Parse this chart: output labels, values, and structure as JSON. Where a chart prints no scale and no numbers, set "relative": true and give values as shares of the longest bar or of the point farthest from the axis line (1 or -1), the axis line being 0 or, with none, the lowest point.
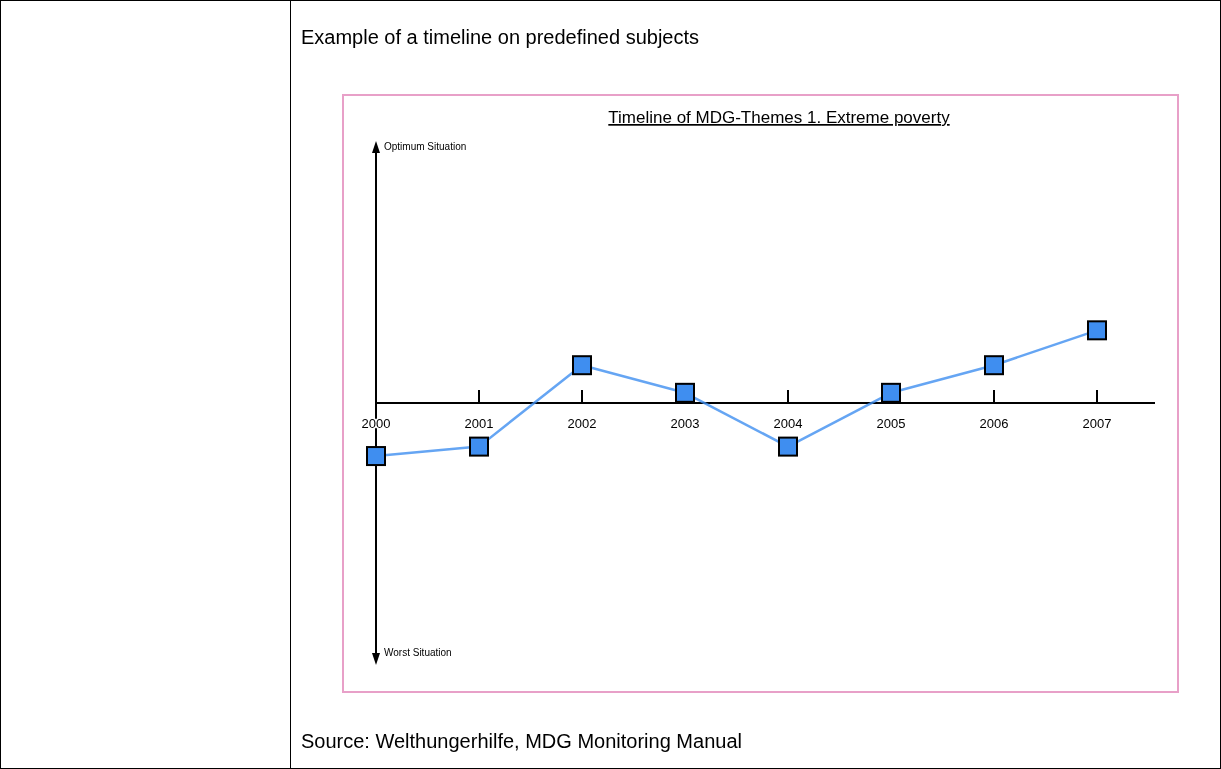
{
  "chart_data": {
    "type": "line",
    "relative": true,
    "title": "Timeline of MDG-Themes    1. Extreme poverty",
    "subtitle": "Example of a timeline on predefined subjects",
    "categories": [
      "2000",
      "2001",
      "2002",
      "2003",
      "2004",
      "2005",
      "2006",
      "2007"
    ],
    "series": [
      {
        "color": "#3f8ef0",
        "values": [
          -0.73,
          -0.6,
          0.52,
          0.14,
          -0.6,
          0.14,
          0.52,
          1
        ]
      }
    ],
    "marker": "square",
    "line_style": "solid",
    "annotations": [
      "Optimum Situation",
      "Worst Situation",
      "Source: Welthungerhilfe, MDG Monitoring Manual"
    ]
  }
}
